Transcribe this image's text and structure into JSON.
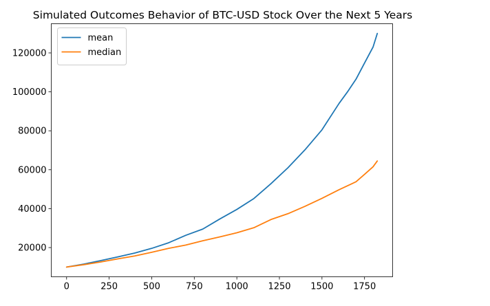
{
  "chart_data": {
    "type": "line",
    "title": "Simulated Outcomes Behavior of BTC-USD Stock Over the Next 5 Years",
    "xlabel": "",
    "ylabel": "",
    "xlim": [
      -90,
      1915
    ],
    "ylim": [
      5000,
      135000
    ],
    "xticks": [
      0,
      250,
      500,
      750,
      1000,
      1250,
      1500,
      1750
    ],
    "yticks": [
      20000,
      40000,
      60000,
      80000,
      100000,
      120000
    ],
    "grid": false,
    "legend": "top-left",
    "series": [
      {
        "name": "mean",
        "color": "#1f77b4",
        "x": [
          0,
          100,
          200,
          300,
          400,
          500,
          600,
          700,
          800,
          900,
          1000,
          1100,
          1200,
          1300,
          1400,
          1500,
          1600,
          1650,
          1700,
          1750,
          1800,
          1825
        ],
        "y": [
          10000,
          11500,
          13300,
          15200,
          17200,
          19600,
          22500,
          26300,
          29500,
          34700,
          39600,
          45200,
          52800,
          61000,
          70200,
          80500,
          94000,
          100000,
          106500,
          114800,
          123000,
          130000
        ]
      },
      {
        "name": "median",
        "color": "#ff7f0e",
        "x": [
          0,
          100,
          200,
          300,
          400,
          500,
          600,
          700,
          800,
          900,
          1000,
          1100,
          1200,
          1300,
          1400,
          1500,
          1600,
          1700,
          1750,
          1800,
          1825
        ],
        "y": [
          10000,
          11200,
          12600,
          14200,
          15700,
          17600,
          19600,
          21300,
          23500,
          25500,
          27600,
          30200,
          34400,
          37400,
          41200,
          45300,
          49700,
          53800,
          57600,
          61500,
          64500
        ]
      }
    ]
  }
}
